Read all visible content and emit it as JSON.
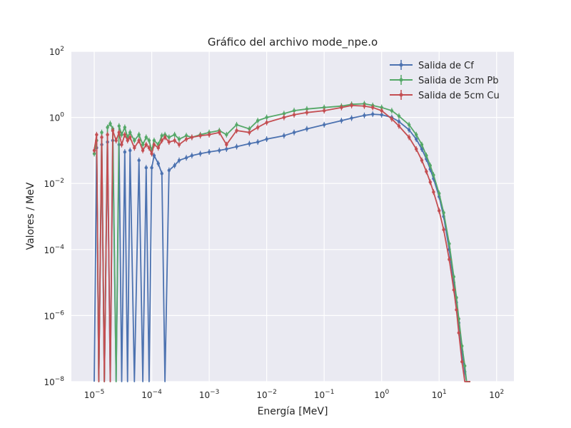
{
  "chart_data": {
    "type": "line",
    "title": "Gráfico del archivo mode_npe.o",
    "xlabel": "Energía [MeV]",
    "ylabel": "Valores / MeV",
    "xscale": "log",
    "yscale": "log",
    "xlim": [
      4e-06,
      200
    ],
    "ylim": [
      1e-08,
      100
    ],
    "grid": true,
    "background": "#eaeaf2",
    "legend_position": "top-right",
    "x_ticks": [
      {
        "value": 1e-05,
        "base": "10",
        "exp": "−5"
      },
      {
        "value": 0.0001,
        "base": "10",
        "exp": "−4"
      },
      {
        "value": 0.001,
        "base": "10",
        "exp": "−3"
      },
      {
        "value": 0.01,
        "base": "10",
        "exp": "−2"
      },
      {
        "value": 0.1,
        "base": "10",
        "exp": "−1"
      },
      {
        "value": 1,
        "base": "10",
        "exp": "0"
      },
      {
        "value": 10,
        "base": "10",
        "exp": "1"
      },
      {
        "value": 100,
        "base": "10",
        "exp": "2"
      }
    ],
    "y_ticks": [
      {
        "value": 1e-08,
        "base": "10",
        "exp": "−8"
      },
      {
        "value": 1e-06,
        "base": "10",
        "exp": "−6"
      },
      {
        "value": 0.0001,
        "base": "10",
        "exp": "−4"
      },
      {
        "value": 0.01,
        "base": "10",
        "exp": "−2"
      },
      {
        "value": 1,
        "base": "10",
        "exp": "0"
      },
      {
        "value": 100,
        "base": "10",
        "exp": "2"
      }
    ],
    "series": [
      {
        "name": "Salida de Cf",
        "color": "#4c72b0",
        "x": [
          1e-05,
          1.1e-05,
          1.2e-05,
          1.35e-05,
          1.5e-05,
          1.7e-05,
          1.9e-05,
          2.1e-05,
          2.4e-05,
          2.7e-05,
          3e-05,
          3.4e-05,
          3.8e-05,
          4.2e-05,
          5e-05,
          6e-05,
          7e-05,
          8e-05,
          9e-05,
          0.0001,
          0.00011,
          0.00013,
          0.00015,
          0.00017,
          0.0002,
          0.00025,
          0.0003,
          0.0004,
          0.0005,
          0.0007,
          0.001,
          0.0015,
          0.002,
          0.003,
          0.005,
          0.007,
          0.01,
          0.02,
          0.03,
          0.05,
          0.1,
          0.2,
          0.3,
          0.5,
          0.7,
          1,
          1.5,
          2,
          3,
          4,
          5,
          6,
          7,
          8,
          10,
          12,
          15,
          18,
          20,
          22,
          25,
          28,
          30,
          32,
          35
        ],
        "y": [
          1e-08,
          0.12,
          1e-08,
          0.15,
          1e-08,
          0.18,
          1e-08,
          0.2,
          1e-08,
          0.15,
          1e-08,
          0.09,
          1e-08,
          0.1,
          1e-08,
          0.05,
          1e-08,
          0.03,
          1e-08,
          0.03,
          0.07,
          0.04,
          0.02,
          1e-08,
          0.025,
          0.035,
          0.05,
          0.06,
          0.07,
          0.08,
          0.09,
          0.1,
          0.11,
          0.13,
          0.16,
          0.18,
          0.22,
          0.28,
          0.35,
          0.45,
          0.6,
          0.8,
          0.95,
          1.15,
          1.25,
          1.2,
          1.0,
          0.75,
          0.42,
          0.22,
          0.11,
          0.055,
          0.027,
          0.014,
          0.004,
          0.001,
          0.0001,
          1e-05,
          2.5e-06,
          6e-07,
          8e-08,
          2e-08,
          1e-08,
          1e-08,
          1e-08
        ]
      },
      {
        "name": "Salida de 3cm Pb",
        "color": "#55a868",
        "x": [
          1e-05,
          1.1e-05,
          1.2e-05,
          1.35e-05,
          1.5e-05,
          1.7e-05,
          1.9e-05,
          2.1e-05,
          2.4e-05,
          2.7e-05,
          3e-05,
          3.4e-05,
          3.8e-05,
          4.2e-05,
          5e-05,
          6e-05,
          7e-05,
          8e-05,
          9e-05,
          0.0001,
          0.00011,
          0.00013,
          0.00015,
          0.00017,
          0.0002,
          0.00025,
          0.0003,
          0.0004,
          0.0005,
          0.0007,
          0.001,
          0.0015,
          0.002,
          0.003,
          0.005,
          0.007,
          0.01,
          0.02,
          0.03,
          0.05,
          0.1,
          0.2,
          0.3,
          0.5,
          0.7,
          1,
          1.5,
          2,
          3,
          4,
          5,
          6,
          7,
          8,
          10,
          12,
          15,
          18,
          20,
          22,
          25,
          28,
          30,
          32,
          35
        ],
        "y": [
          0.08,
          0.2,
          1e-08,
          0.35,
          1e-08,
          0.5,
          0.65,
          0.45,
          1e-08,
          0.55,
          0.3,
          0.5,
          0.25,
          0.35,
          0.2,
          0.3,
          0.15,
          0.25,
          0.2,
          0.1,
          0.2,
          0.15,
          0.28,
          0.3,
          0.25,
          0.3,
          0.22,
          0.28,
          0.25,
          0.3,
          0.35,
          0.4,
          0.3,
          0.6,
          0.45,
          0.8,
          1.0,
          1.3,
          1.6,
          1.8,
          2.0,
          2.2,
          2.5,
          2.6,
          2.3,
          2.0,
          1.6,
          1.1,
          0.6,
          0.3,
          0.15,
          0.07,
          0.035,
          0.018,
          0.005,
          0.0013,
          0.00015,
          1.5e-05,
          3.5e-06,
          8e-07,
          1.2e-07,
          3e-08,
          1e-08,
          1e-08,
          1e-08
        ]
      },
      {
        "name": "Salida de 5cm Cu",
        "color": "#c44e52",
        "x": [
          1e-05,
          1.1e-05,
          1.2e-05,
          1.35e-05,
          1.5e-05,
          1.7e-05,
          1.9e-05,
          2.1e-05,
          2.4e-05,
          2.7e-05,
          3e-05,
          3.4e-05,
          3.8e-05,
          4.2e-05,
          5e-05,
          6e-05,
          7e-05,
          8e-05,
          9e-05,
          0.0001,
          0.00011,
          0.00013,
          0.00015,
          0.00017,
          0.0002,
          0.00025,
          0.0003,
          0.0004,
          0.0005,
          0.0007,
          0.001,
          0.0015,
          0.002,
          0.003,
          0.005,
          0.007,
          0.01,
          0.02,
          0.03,
          0.05,
          0.1,
          0.2,
          0.3,
          0.5,
          0.7,
          1,
          1.5,
          2,
          3,
          4,
          5,
          6,
          7,
          8,
          10,
          12,
          15,
          18,
          20,
          22,
          25,
          28,
          30,
          32,
          35
        ],
        "y": [
          0.1,
          0.3,
          1e-08,
          0.25,
          1e-08,
          0.3,
          1e-08,
          0.4,
          0.2,
          0.35,
          0.15,
          0.3,
          0.2,
          0.25,
          0.12,
          0.2,
          0.1,
          0.15,
          0.12,
          0.08,
          0.15,
          0.12,
          0.2,
          0.25,
          0.18,
          0.2,
          0.15,
          0.22,
          0.25,
          0.28,
          0.3,
          0.35,
          0.15,
          0.4,
          0.35,
          0.5,
          0.7,
          1.0,
          1.2,
          1.4,
          1.6,
          2.0,
          2.3,
          2.2,
          2.0,
          1.6,
          0.9,
          0.55,
          0.25,
          0.11,
          0.05,
          0.023,
          0.011,
          0.0055,
          0.0015,
          0.0004,
          5e-05,
          6e-06,
          1.5e-06,
          3e-07,
          4e-08,
          1e-08,
          1e-08,
          1e-08,
          1e-08
        ]
      }
    ]
  }
}
